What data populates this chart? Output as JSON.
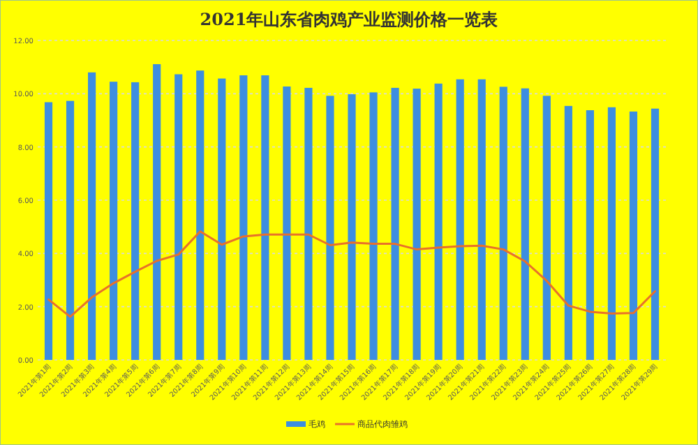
{
  "chart_data": {
    "type": "bar",
    "title": "2021年山东省肉鸡产业监测价格一览表",
    "categories": [
      "2021年第1周",
      "2021年第2周",
      "2021年第3周",
      "2021年第4周",
      "2021年第5周",
      "2021年第6周",
      "2021年第7周",
      "2021年第8周",
      "2021年第9周",
      "2021年第10周",
      "2021年第11周",
      "2021年第12周",
      "2021年第13周",
      "2021年第14周",
      "2021年第15周",
      "2021年第16周",
      "2021年第17周",
      "2021年第18周",
      "2021年第19周",
      "2021年第20周",
      "2021年第21周",
      "2021年第22周",
      "2021年第23周",
      "2021年第24周",
      "2021年第25周",
      "2021年第26周",
      "2021年第27周",
      "2021年第28周",
      "2021年第29周"
    ],
    "series": [
      {
        "name": "毛鸡",
        "color": "#3d8ee0",
        "values": [
          9.68,
          9.73,
          10.8,
          10.45,
          10.43,
          11.11,
          10.73,
          10.87,
          10.57,
          10.69,
          10.69,
          10.27,
          10.22,
          9.92,
          9.98,
          10.05,
          10.22,
          10.19,
          10.38,
          10.54,
          10.54,
          10.26,
          10.2,
          9.92,
          9.54,
          9.38,
          9.49,
          9.33,
          9.44
        ]
      },
      {
        "name": "商品代肉雏鸡",
        "type": "line",
        "color": "#e8712a",
        "values": [
          2.27,
          1.62,
          2.35,
          2.88,
          3.31,
          3.72,
          3.96,
          4.83,
          4.33,
          4.64,
          4.71,
          4.71,
          4.71,
          4.31,
          4.41,
          4.36,
          4.36,
          4.15,
          4.22,
          4.27,
          4.29,
          4.15,
          3.7,
          2.97,
          2.04,
          1.81,
          1.74,
          1.76,
          2.58
        ]
      }
    ],
    "ylim": [
      0,
      12
    ],
    "yticks": [
      {
        "value": 0,
        "label": "0.00"
      },
      {
        "value": 2,
        "label": "2.00"
      },
      {
        "value": 4,
        "label": "4.00"
      },
      {
        "value": 6,
        "label": "6.00"
      },
      {
        "value": 8,
        "label": "8.00"
      },
      {
        "value": 10,
        "label": "10.00"
      },
      {
        "value": 12,
        "label": "12.00"
      }
    ],
    "grid": "y",
    "legend": "bottom",
    "marker": "none",
    "line_style": "solid"
  }
}
